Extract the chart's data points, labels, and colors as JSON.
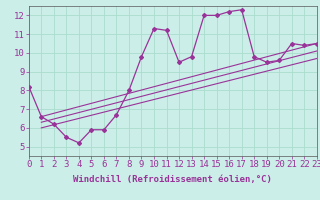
{
  "background_color": "#cceee8",
  "grid_color": "#aaddcc",
  "line_color": "#993399",
  "marker_color": "#993399",
  "xlabel": "Windchill (Refroidissement éolien,°C)",
  "ylabel_ticks": [
    5,
    6,
    7,
    8,
    9,
    10,
    11,
    12
  ],
  "xlim": [
    0,
    23
  ],
  "ylim": [
    4.5,
    12.5
  ],
  "hours": [
    0,
    1,
    2,
    3,
    4,
    5,
    6,
    7,
    8,
    9,
    10,
    11,
    12,
    13,
    14,
    15,
    16,
    17,
    18,
    19,
    20,
    21,
    22,
    23
  ],
  "main_line": [
    8.2,
    6.6,
    6.2,
    5.5,
    5.2,
    5.9,
    5.9,
    6.7,
    8.0,
    9.8,
    11.3,
    11.2,
    9.5,
    9.8,
    12.0,
    12.0,
    12.2,
    12.3,
    9.8,
    9.5,
    9.6,
    10.5,
    10.4,
    10.5
  ],
  "line2_start": 6.6,
  "line2_end": 10.5,
  "line3_start": 6.3,
  "line3_end": 10.1,
  "line4_start": 6.0,
  "line4_end": 9.7,
  "font_size_xlabel": 6.5,
  "font_size_tick": 6.5
}
